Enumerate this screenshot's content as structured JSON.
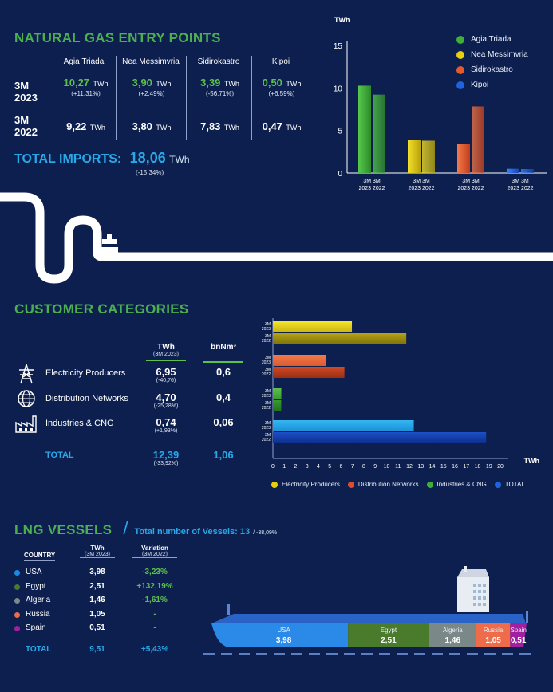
{
  "gas_entry": {
    "title": "NATURAL GAS ENTRY POINTS",
    "points": [
      "Agia Triada",
      "Nea Messimvria",
      "Sidirokastro",
      "Kipoi"
    ],
    "row_2023_label": [
      "3M",
      "2023"
    ],
    "row_2022_label": [
      "3M",
      "2022"
    ],
    "values_2023": [
      "10,27",
      "3,90",
      "3,39",
      "0,50"
    ],
    "changes_2023": [
      "(+11,31%)",
      "(+2,49%)",
      "(-56,71%)",
      "(+6,59%)"
    ],
    "values_2022": [
      "9,22",
      "3,80",
      "7,83",
      "0,47"
    ],
    "unit": "TWh",
    "total_label": "TOTAL IMPORTS:",
    "total_value": "18,06",
    "total_unit": "TWh",
    "total_change": "(-15,34%)"
  },
  "customers": {
    "title": "CUSTOMER CATEGORIES",
    "col1_head": "TWh",
    "col1_sub": "(3M 2023)",
    "col2_head": "bnNm³",
    "rows": [
      {
        "name": "Electricity Producers",
        "twh": "6,95",
        "change": "(-40,76)",
        "bnm": "0,6",
        "icon": "power-tower-icon"
      },
      {
        "name": "Distribution Networks",
        "twh": "4,70",
        "change": "(-25,28%)",
        "bnm": "0,4",
        "icon": "globe-icon"
      },
      {
        "name": "Industries & CNG",
        "twh": "0,74",
        "change": "(+1,93%)",
        "bnm": "0,06",
        "icon": "factory-icon"
      }
    ],
    "total_label": "TOTAL",
    "total_twh": "12,39",
    "total_change": "(-33,92%)",
    "total_bnm": "1,06"
  },
  "lng": {
    "title": "LNG VESSELS",
    "subtitle": "Total number of Vessels: 13",
    "subtitle_change": "/ -38,09%",
    "col_country": "COUNTRY",
    "col_twh": "TWh",
    "col_twh_sub": "(3M 2023)",
    "col_var": "Variation",
    "col_var_sub": "(3M 2022)",
    "rows": [
      {
        "country": "USA",
        "twh": "3,98",
        "variation": "-3,23%",
        "color": "#1e88e5"
      },
      {
        "country": "Egypt",
        "twh": "2,51",
        "variation": "+132,19%",
        "color": "#4a7a2c"
      },
      {
        "country": "Algeria",
        "twh": "1,46",
        "variation": "-1,61%",
        "color": "#7a8a8a"
      },
      {
        "country": "Russia",
        "twh": "1,05",
        "variation": "-",
        "color": "#ef6c4a"
      },
      {
        "country": "Spain",
        "twh": "0,51",
        "variation": "-",
        "color": "#a020a0"
      }
    ],
    "total_label": "TOTAL",
    "total_twh": "9,51",
    "total_variation": "+5,43%"
  },
  "chart_data": [
    {
      "type": "bar",
      "ylabel": "TWh",
      "ylim": [
        0,
        15
      ],
      "yticks": [
        "0",
        "5",
        "10",
        "15"
      ],
      "categories": [
        "Agia Triada",
        "Nea Messimvria",
        "Sidirokastro",
        "Kipoi"
      ],
      "xtick_label_top": "3M 3M",
      "xtick_label_bottom": "2023 2022",
      "series": [
        {
          "name": "2023",
          "values": [
            10.27,
            3.9,
            3.39,
            0.5
          ]
        },
        {
          "name": "2022",
          "values": [
            9.22,
            3.8,
            7.83,
            0.47
          ]
        }
      ],
      "colors": [
        "#3fae3a",
        "#e5cf10",
        "#e55a2b",
        "#1e63e0"
      ],
      "legend": [
        "Agia Triada",
        "Nea Messimvria",
        "Sidirokastro",
        "Kipoi"
      ],
      "legend_position": "top-right"
    },
    {
      "type": "bar",
      "orientation": "horizontal",
      "xlabel": "TWh",
      "xlim": [
        0,
        20
      ],
      "xticks": [
        "0",
        "1",
        "2",
        "3",
        "4",
        "5",
        "6",
        "7",
        "8",
        "9",
        "10",
        "11",
        "12",
        "13",
        "14",
        "15",
        "16",
        "17",
        "18",
        "19",
        "20"
      ],
      "row_label_top": "3M",
      "row_labels_year": [
        "2023",
        "2022"
      ],
      "categories": [
        "Electricity Producers",
        "Distribution Networks",
        "Industries & CNG",
        "TOTAL"
      ],
      "series": [
        {
          "name": "3M 2023",
          "values": [
            6.95,
            4.7,
            0.74,
            12.39
          ]
        },
        {
          "name": "3M 2022",
          "values": [
            11.73,
            6.29,
            0.73,
            18.75
          ]
        }
      ],
      "colors": [
        "#d8c614",
        "#e14a2a",
        "#3fae3a",
        "#1e63e0"
      ],
      "legend": [
        "Electricity Producers",
        "Distribution Networks",
        "Industries & CNG",
        "TOTAL"
      ],
      "legend_position": "bottom"
    }
  ]
}
